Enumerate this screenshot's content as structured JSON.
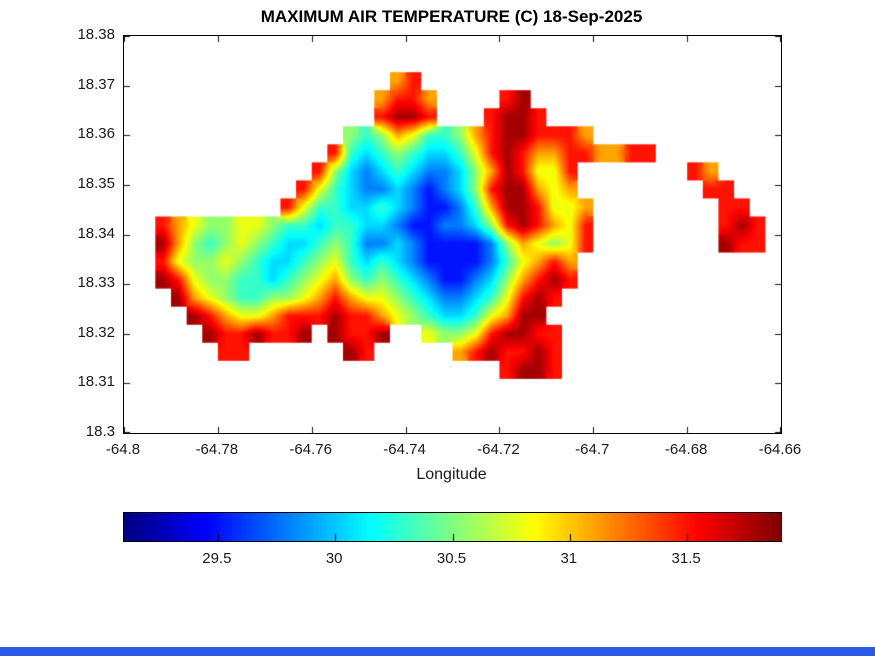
{
  "figure": {
    "background": "#ffffff",
    "bottom_bar_color": "#2b59e8",
    "axis_color": "#1a1a1a"
  },
  "chart_data": {
    "type": "heatmap",
    "title": "MAXIMUM AIR TEMPERATURE (C) 18-Sep-2025",
    "xlabel": "Longitude",
    "ylabel": "",
    "units": "C",
    "date": "18-Sep-2025",
    "grid_lines": false,
    "legend": "colorbar-horizontal-bottom",
    "xlim": [
      -64.8,
      -64.66
    ],
    "ylim": [
      18.3,
      18.38
    ],
    "x_ticks": [
      -64.8,
      -64.78,
      -64.76,
      -64.74,
      -64.72,
      -64.7,
      -64.68,
      -64.66
    ],
    "x_tick_labels": [
      "-64.8",
      "-64.78",
      "-64.76",
      "-64.74",
      "-64.72",
      "-64.7",
      "-64.68",
      "-64.66"
    ],
    "y_ticks": [
      18.3,
      18.31,
      18.32,
      18.33,
      18.34,
      18.35,
      18.36,
      18.37,
      18.38
    ],
    "y_tick_labels": [
      "18.3",
      "18.31",
      "18.32",
      "18.33",
      "18.34",
      "18.35",
      "18.36",
      "18.37",
      "18.38"
    ],
    "colormap": "jet",
    "color_range": [
      29.1,
      31.9
    ],
    "colorbar_ticks": [
      29.5,
      30,
      30.5,
      31,
      31.5
    ],
    "colorbar_tick_labels": [
      "29.5",
      "30",
      "30.5",
      "31",
      "31.5"
    ],
    "grid": {
      "description": "Max air temperature (C) over island; rows top=lat 18.38 to bottom=lat 18.30, cols left=lon -64.80 to right=lon -64.66; '.' = water/no data",
      "lon_range": [
        -64.8,
        -64.66
      ],
      "lat_range": [
        18.3,
        18.38
      ],
      "ncols": 42,
      "nrows": 22,
      "water_char": ".",
      "value_key": {
        "0": 29.2,
        "1": 29.5,
        "2": 29.8,
        "3": 30.05,
        "4": 30.3,
        "5": 30.55,
        "6": 30.8,
        "7": 31.1,
        "8": 31.5,
        "9": 31.8
      },
      "rows": [
        "..........................................",
        "..........................................",
        ".................78.......................",
        "................7887....89................",
        "................8998...8998...............",
        "..............5457644578998887............",
        ".............843454334689877887788........",
        "............85323432235798668.......87....",
        "...........864322321235899767........88...",
        "..........86443343211247998667........88..",
        "..8765566544344332112235898768........898.",
        "..9754565433454223211112576568........988.",
        "..865565433456434321111246787.............",
        "..986554434567545432112357898.............",
        "...9765445567876654322346898..............",
        "....98766788898876543346799...............",
        ".....9889889.9889..655689988..............",
        "......88......98.....7898898..............",
        "........................8998..............",
        "..........................................",
        "..........................................",
        ".........................................."
      ]
    }
  }
}
